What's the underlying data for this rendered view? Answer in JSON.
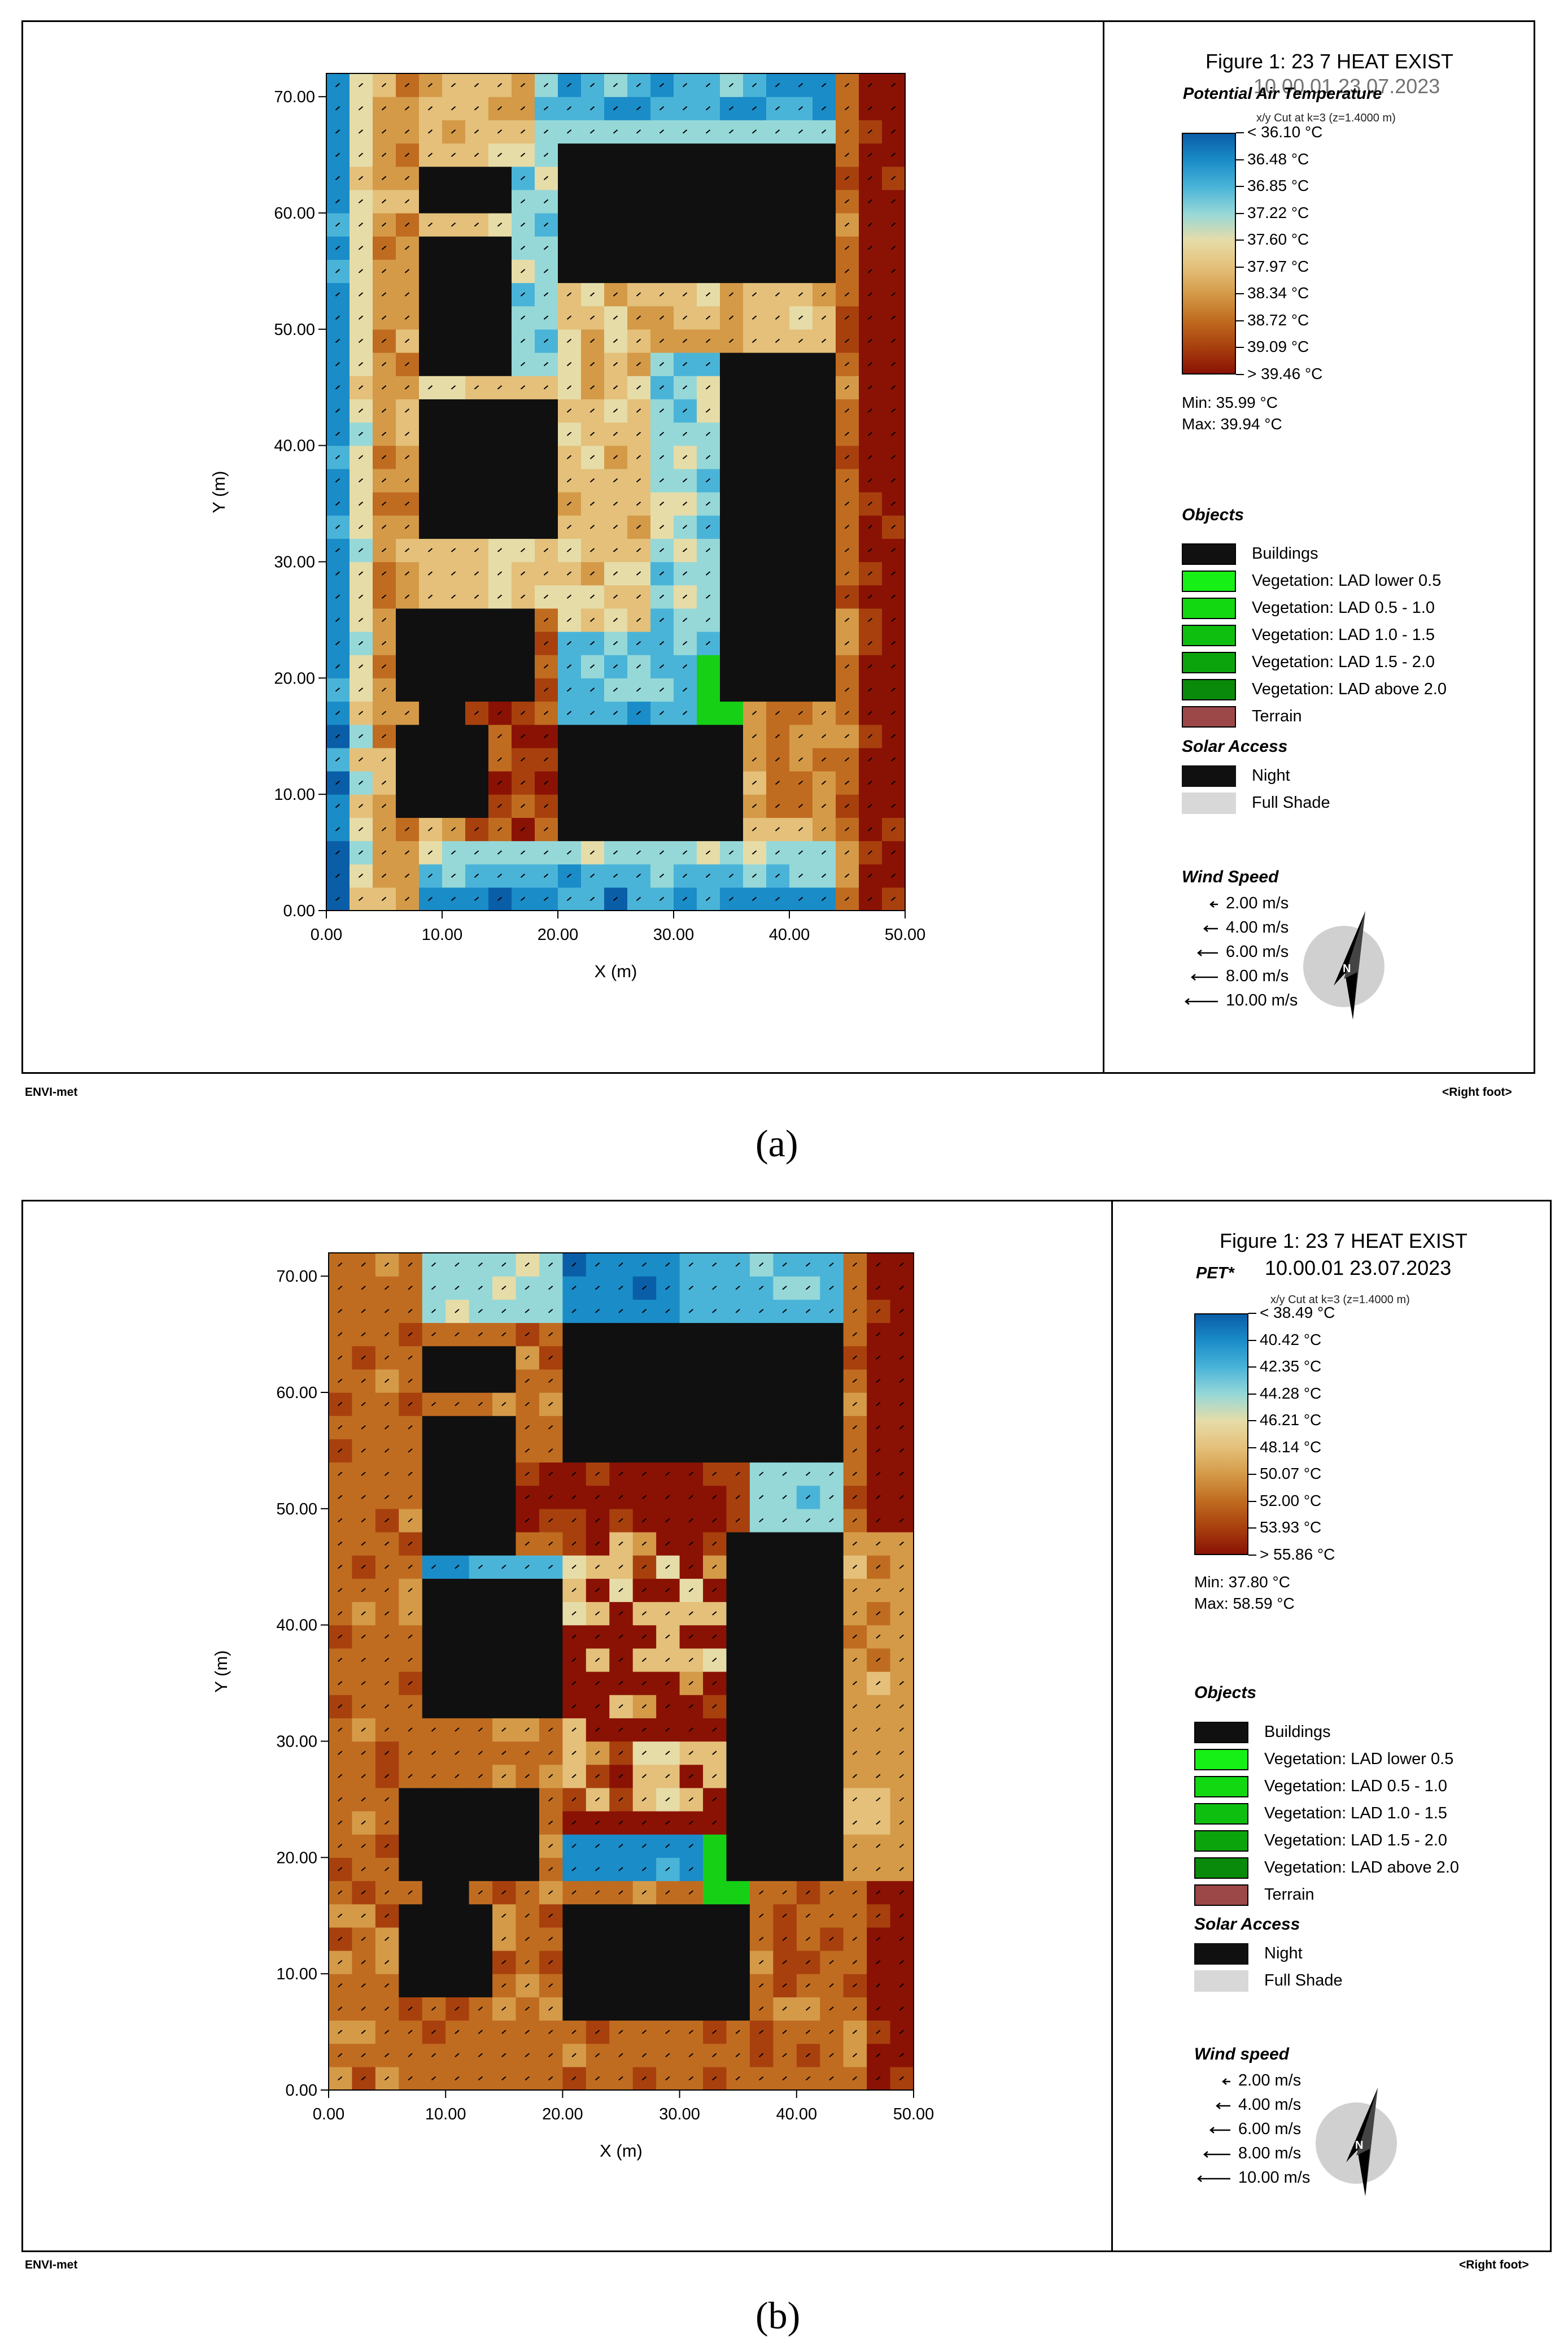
{
  "panels": [
    {
      "id": "a",
      "letter": "(a)",
      "figure_title": "Figure 1: 23 7 HEAT EXIST",
      "figure_subtitle": "10.00.01 23.07.2023",
      "variable_title": "Potential Air Temperature",
      "cut_label": "x/y Cut at k=3 (z=1.4000 m)",
      "colorbar_labels": [
        "< 36.10 °C",
        "36.48  °C",
        "36.85  °C",
        "37.22  °C",
        "37.60  °C",
        "37.97  °C",
        "38.34  °C",
        "38.72  °C",
        "39.09  °C",
        "> 39.46 °C"
      ],
      "min_text": "Min: 35.99 °C",
      "max_text": "Max: 39.94 °C",
      "wind_title": "Wind Speed"
    },
    {
      "id": "b",
      "letter": "(b)",
      "figure_title": "Figure 1: 23 7 HEAT EXIST",
      "figure_subtitle": "10.00.01 23.07.2023",
      "variable_title": "PET*",
      "cut_label": "x/y Cut at k=3 (z=1.4000 m)",
      "colorbar_labels": [
        "< 38.49 °C",
        "40.42  °C",
        "42.35  °C",
        "44.28  °C",
        "46.21  °C",
        "48.14  °C",
        "50.07  °C",
        "52.00  °C",
        "53.93  °C",
        "> 55.86 °C"
      ],
      "min_text": "Min: 37.80 °C",
      "max_text": "Max: 58.59 °C",
      "wind_title": "Wind speed"
    }
  ],
  "legend": {
    "objects_title": "Objects",
    "objects": [
      {
        "label": "Buildings",
        "color": "#101010"
      },
      {
        "label": "Vegetation: LAD lower 0.5",
        "color": "#16f016"
      },
      {
        "label": "Vegetation:  LAD 0.5 - 1.0",
        "color": "#12d812"
      },
      {
        "label": "Vegetation:  LAD 1.0 - 1.5",
        "color": "#0fbf0f"
      },
      {
        "label": "Vegetation:  LAD 1.5 - 2.0",
        "color": "#0ca40c"
      },
      {
        "label": "Vegetation:  LAD above 2.0",
        "color": "#0a8a0a"
      },
      {
        "label": "Terrain",
        "color": "#9c4848"
      }
    ],
    "solar_title": "Solar Access",
    "solar": [
      {
        "label": "Night",
        "color": "#101010"
      },
      {
        "label": "Full Shade",
        "color": "#d8d8d8"
      }
    ],
    "wind_speeds": [
      "2.00 m/s",
      "4.00 m/s",
      "6.00 m/s",
      "8.00 m/s",
      "10.00 m/s"
    ],
    "compass_letter": "N"
  },
  "footer": {
    "left": "ENVI-met",
    "right": "<Right foot>"
  },
  "chart_data": {
    "type": "heatmap",
    "xlabel": "X (m)",
    "ylabel": "Y (m)",
    "xlim": [
      0,
      50
    ],
    "ylim": [
      0,
      72
    ],
    "x_ticks": [
      "0.00",
      "10.00",
      "20.00",
      "30.00",
      "40.00",
      "50.00"
    ],
    "y_ticks": [
      "0.00",
      "10.00",
      "20.00",
      "30.00",
      "40.00",
      "50.00",
      "60.00",
      "70.00"
    ],
    "grid": "25 x 36 cells, 2 m each",
    "buildings_m": [
      [
        8,
        60,
        16,
        64
      ],
      [
        8,
        46,
        16,
        58
      ],
      [
        8,
        32,
        20,
        44
      ],
      [
        6,
        18,
        18,
        26
      ],
      [
        8,
        12,
        12,
        18
      ],
      [
        6,
        8,
        14,
        16
      ],
      [
        20,
        54,
        44,
        66
      ],
      [
        34,
        18,
        44,
        48
      ],
      [
        20,
        6,
        36,
        16
      ]
    ],
    "vegetation_m": [
      [
        32,
        18,
        34,
        22
      ],
      [
        34,
        16,
        36,
        18
      ],
      [
        32,
        16,
        34,
        18
      ]
    ],
    "colormap": [
      "#0a5ea8",
      "#1a8cc8",
      "#4ab4d8",
      "#96d8d8",
      "#e6dca8",
      "#e4c07a",
      "#d49a48",
      "#c06c20",
      "#a8400e",
      "#8a1204"
    ],
    "series": [
      {
        "name": "Potential Air Temperature",
        "levels": [
          36.1,
          36.48,
          36.85,
          37.22,
          37.6,
          37.97,
          38.34,
          38.72,
          39.09,
          39.46
        ]
      },
      {
        "name": "PET*",
        "levels": [
          38.49,
          40.42,
          42.35,
          44.28,
          46.21,
          48.14,
          50.07,
          52.0,
          53.93,
          55.86
        ]
      }
    ]
  }
}
